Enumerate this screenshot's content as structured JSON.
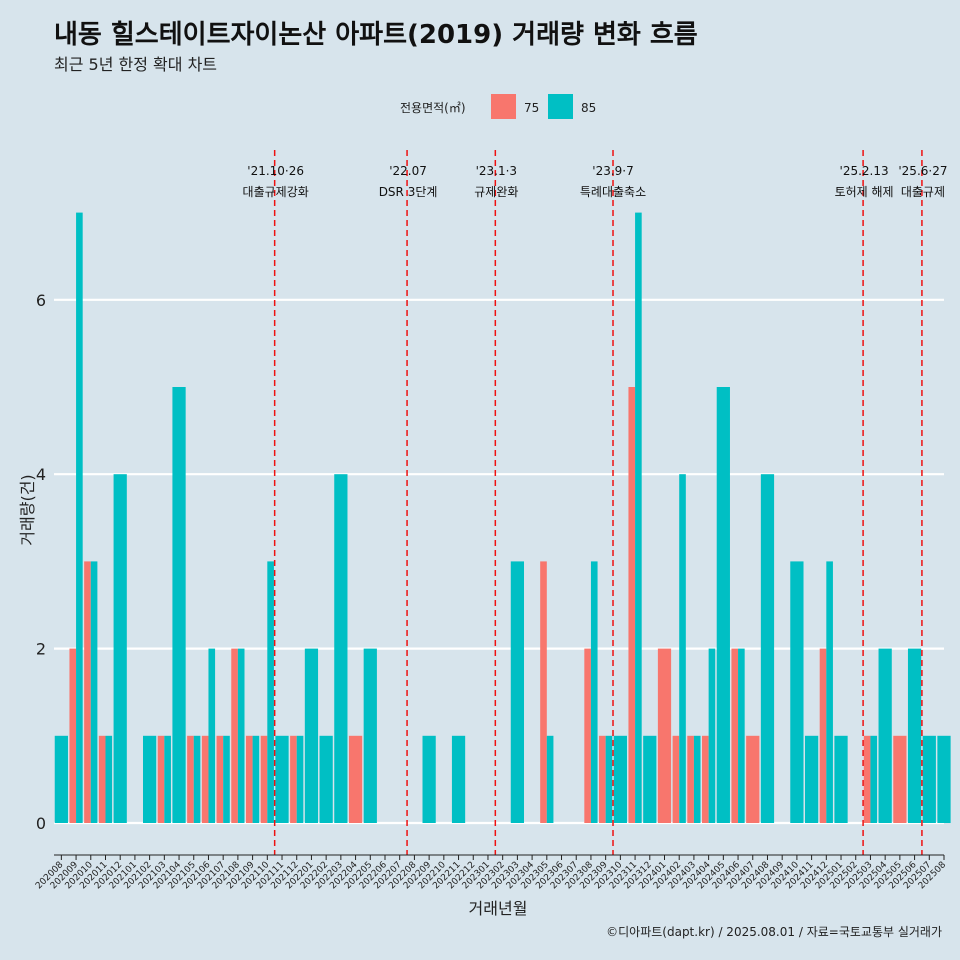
{
  "title": "내동 힐스테이트자이논산 아파트(2019) 거래량 변화 흐름",
  "subtitle": "최근 5년 한정 확대 차트",
  "caption": "©디아파트(dapt.kr) / 2025.08.01 / 자료=국토교통부 실거래가",
  "colors": {
    "75": "#f8766d",
    "85": "#00bfc4",
    "grid": "#ffffff",
    "vline": "#ee1111",
    "background": "#d7e4ec"
  },
  "chart_data": {
    "type": "bar",
    "xlabel": "거래년월",
    "ylabel": "거래량(건)",
    "ylim": [
      0,
      7
    ],
    "yticks": [
      0,
      2,
      4,
      6
    ],
    "grid": true,
    "legend": {
      "title": "전용면적(㎡)",
      "position": "top",
      "entries": [
        "75",
        "85"
      ]
    },
    "categories": [
      "202008",
      "202009",
      "202010",
      "202011",
      "202012",
      "202101",
      "202102",
      "202103",
      "202104",
      "202105",
      "202106",
      "202107",
      "202108",
      "202109",
      "202110",
      "202111",
      "202112",
      "202201",
      "202202",
      "202203",
      "202204",
      "202205",
      "202206",
      "202207",
      "202208",
      "202209",
      "202210",
      "202211",
      "202212",
      "202301",
      "202302",
      "202303",
      "202304",
      "202305",
      "202306",
      "202307",
      "202308",
      "202309",
      "202310",
      "202311",
      "202312",
      "202401",
      "202402",
      "202403",
      "202404",
      "202405",
      "202406",
      "202407",
      "202408",
      "202409",
      "202410",
      "202411",
      "202412",
      "202501",
      "202502",
      "202503",
      "202504",
      "202505",
      "202506",
      "202507",
      "202508"
    ],
    "series": [
      {
        "name": "75",
        "values": [
          0,
          2,
          3,
          1,
          0,
          0,
          0,
          1,
          0,
          1,
          1,
          1,
          2,
          1,
          1,
          0,
          1,
          0,
          0,
          0,
          1,
          0,
          0,
          0,
          0,
          0,
          0,
          0,
          0,
          0,
          0,
          0,
          0,
          3,
          0,
          0,
          2,
          1,
          0,
          5,
          0,
          2,
          1,
          1,
          1,
          0,
          2,
          1,
          0,
          0,
          0,
          0,
          2,
          0,
          0,
          1,
          0,
          1,
          0,
          0,
          0
        ]
      },
      {
        "name": "85",
        "values": [
          1,
          7,
          3,
          1,
          4,
          0,
          1,
          1,
          5,
          1,
          2,
          1,
          2,
          1,
          3,
          1,
          1,
          2,
          1,
          4,
          0,
          2,
          0,
          0,
          0,
          1,
          0,
          1,
          0,
          0,
          0,
          3,
          0,
          1,
          0,
          0,
          3,
          1,
          1,
          7,
          1,
          0,
          4,
          1,
          2,
          5,
          2,
          0,
          4,
          0,
          3,
          1,
          3,
          1,
          0,
          1,
          2,
          0,
          2,
          1,
          1
        ]
      }
    ],
    "annotations": [
      {
        "x_after": "202110",
        "date": "'21.10·26",
        "label": "대출규제강화"
      },
      {
        "x_after": "202207",
        "date": "'22.07",
        "label": "DSR 3단계"
      },
      {
        "x_after": "202301",
        "date": "'23.1·3",
        "label": "규제완화"
      },
      {
        "x_after": "202309",
        "date": "'23.9·7",
        "label": "특례대출축소"
      },
      {
        "x_after": "202502",
        "date": "'25.2.13",
        "label": "토허제 해제"
      },
      {
        "x_after": "202506",
        "date": "'25.6·27",
        "label": "대출규제"
      }
    ]
  }
}
